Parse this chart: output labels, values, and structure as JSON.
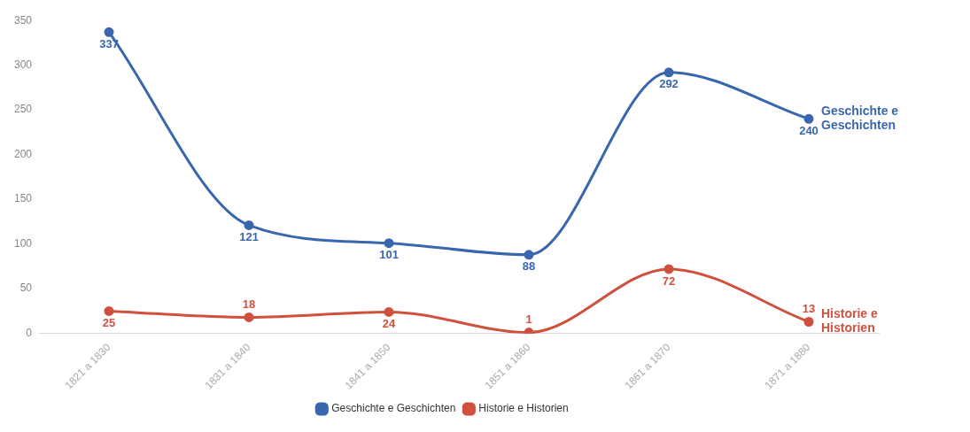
{
  "chart_data": {
    "type": "line",
    "categories": [
      "1821 a 1830",
      "1831 a 1840",
      "1841 a 1850",
      "1851 a 1860",
      "1861 a 1870",
      "1871 a 1880"
    ],
    "series": [
      {
        "name": "Geschichte e Geschichten",
        "color": "#3a66ad",
        "values": [
          337,
          121,
          101,
          88,
          292,
          240
        ]
      },
      {
        "name": "Historie e Historien",
        "color": "#d0503e",
        "values": [
          25,
          18,
          24,
          1,
          72,
          13
        ]
      }
    ],
    "ylim": [
      0,
      350
    ],
    "yticks": [
      0,
      50,
      100,
      150,
      200,
      250,
      300,
      350
    ],
    "grid": false,
    "legend": "bottom",
    "marker": "circle",
    "line_style": "solid",
    "data_labels": true
  }
}
